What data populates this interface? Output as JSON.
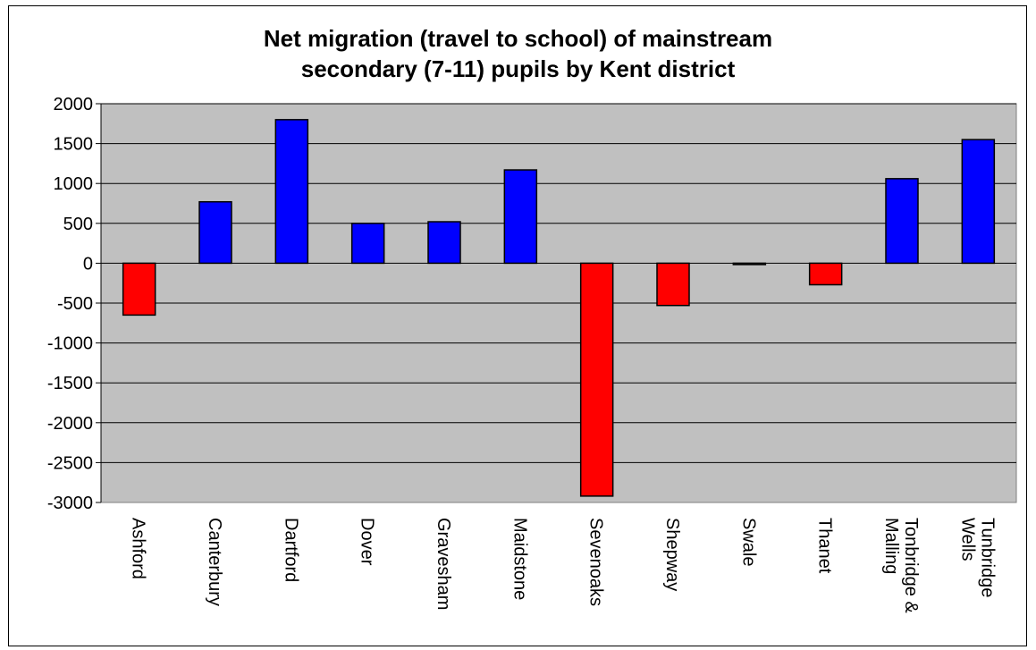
{
  "chart_data": {
    "type": "bar",
    "title_lines": [
      "Net migration (travel to school) of mainstream",
      "secondary (7-11) pupils by Kent district"
    ],
    "categories": [
      [
        "Ashford"
      ],
      [
        "Canterbury"
      ],
      [
        "Dartford"
      ],
      [
        "Dover"
      ],
      [
        "Gravesham"
      ],
      [
        "Maidstone"
      ],
      [
        "Sevenoaks"
      ],
      [
        "Shepway"
      ],
      [
        "Swale"
      ],
      [
        "Thanet"
      ],
      [
        "Tonbridge &",
        "Malling"
      ],
      [
        "Tunbridge",
        "Wells"
      ]
    ],
    "values": [
      -650,
      770,
      1800,
      500,
      520,
      1170,
      -2920,
      -530,
      -10,
      -270,
      1060,
      1550
    ],
    "ylim": [
      -3000,
      2000
    ],
    "yticks": [
      2000,
      1500,
      1000,
      500,
      0,
      -500,
      -1000,
      -1500,
      -2000,
      -2500,
      -3000
    ],
    "grid": true,
    "colors": {
      "positive": "#0000FF",
      "negative": "#FF0000",
      "plot_background": "#C0C0C0",
      "gridline": "#000000"
    }
  }
}
